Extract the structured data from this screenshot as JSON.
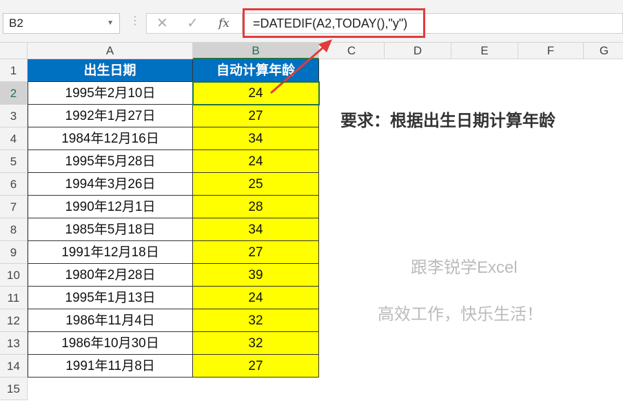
{
  "namebox": "B2",
  "formula": "=DATEDIF(A2,TODAY(),\"y\")",
  "fx_buttons": {
    "cancel": "✕",
    "enter": "✓",
    "fx": "fx"
  },
  "columns": [
    "A",
    "B",
    "C",
    "D",
    "E",
    "F",
    "G"
  ],
  "rows": [
    "1",
    "2",
    "3",
    "4",
    "5",
    "6",
    "7",
    "8",
    "9",
    "10",
    "11",
    "12",
    "13",
    "14",
    "15"
  ],
  "headers": {
    "a": "出生日期",
    "b": "自动计算年龄"
  },
  "data": [
    {
      "date": "1995年2月10日",
      "age": "24"
    },
    {
      "date": "1992年1月27日",
      "age": "27"
    },
    {
      "date": "1984年12月16日",
      "age": "34"
    },
    {
      "date": "1995年5月28日",
      "age": "24"
    },
    {
      "date": "1994年3月26日",
      "age": "25"
    },
    {
      "date": "1990年12月1日",
      "age": "28"
    },
    {
      "date": "1985年5月18日",
      "age": "34"
    },
    {
      "date": "1991年12月18日",
      "age": "27"
    },
    {
      "date": "1980年2月28日",
      "age": "39"
    },
    {
      "date": "1995年1月13日",
      "age": "24"
    },
    {
      "date": "1986年11月4日",
      "age": "32"
    },
    {
      "date": "1986年10月30日",
      "age": "32"
    },
    {
      "date": "1991年11月8日",
      "age": "27"
    }
  ],
  "requirement": "要求：根据出生日期计算年龄",
  "watermark1": "跟李锐学Excel",
  "watermark2": "高效工作，快乐生活！",
  "colors": {
    "header_fill": "#0070c0",
    "age_fill": "#ffff00",
    "highlight": "#e23b3b",
    "selection": "#217346"
  }
}
